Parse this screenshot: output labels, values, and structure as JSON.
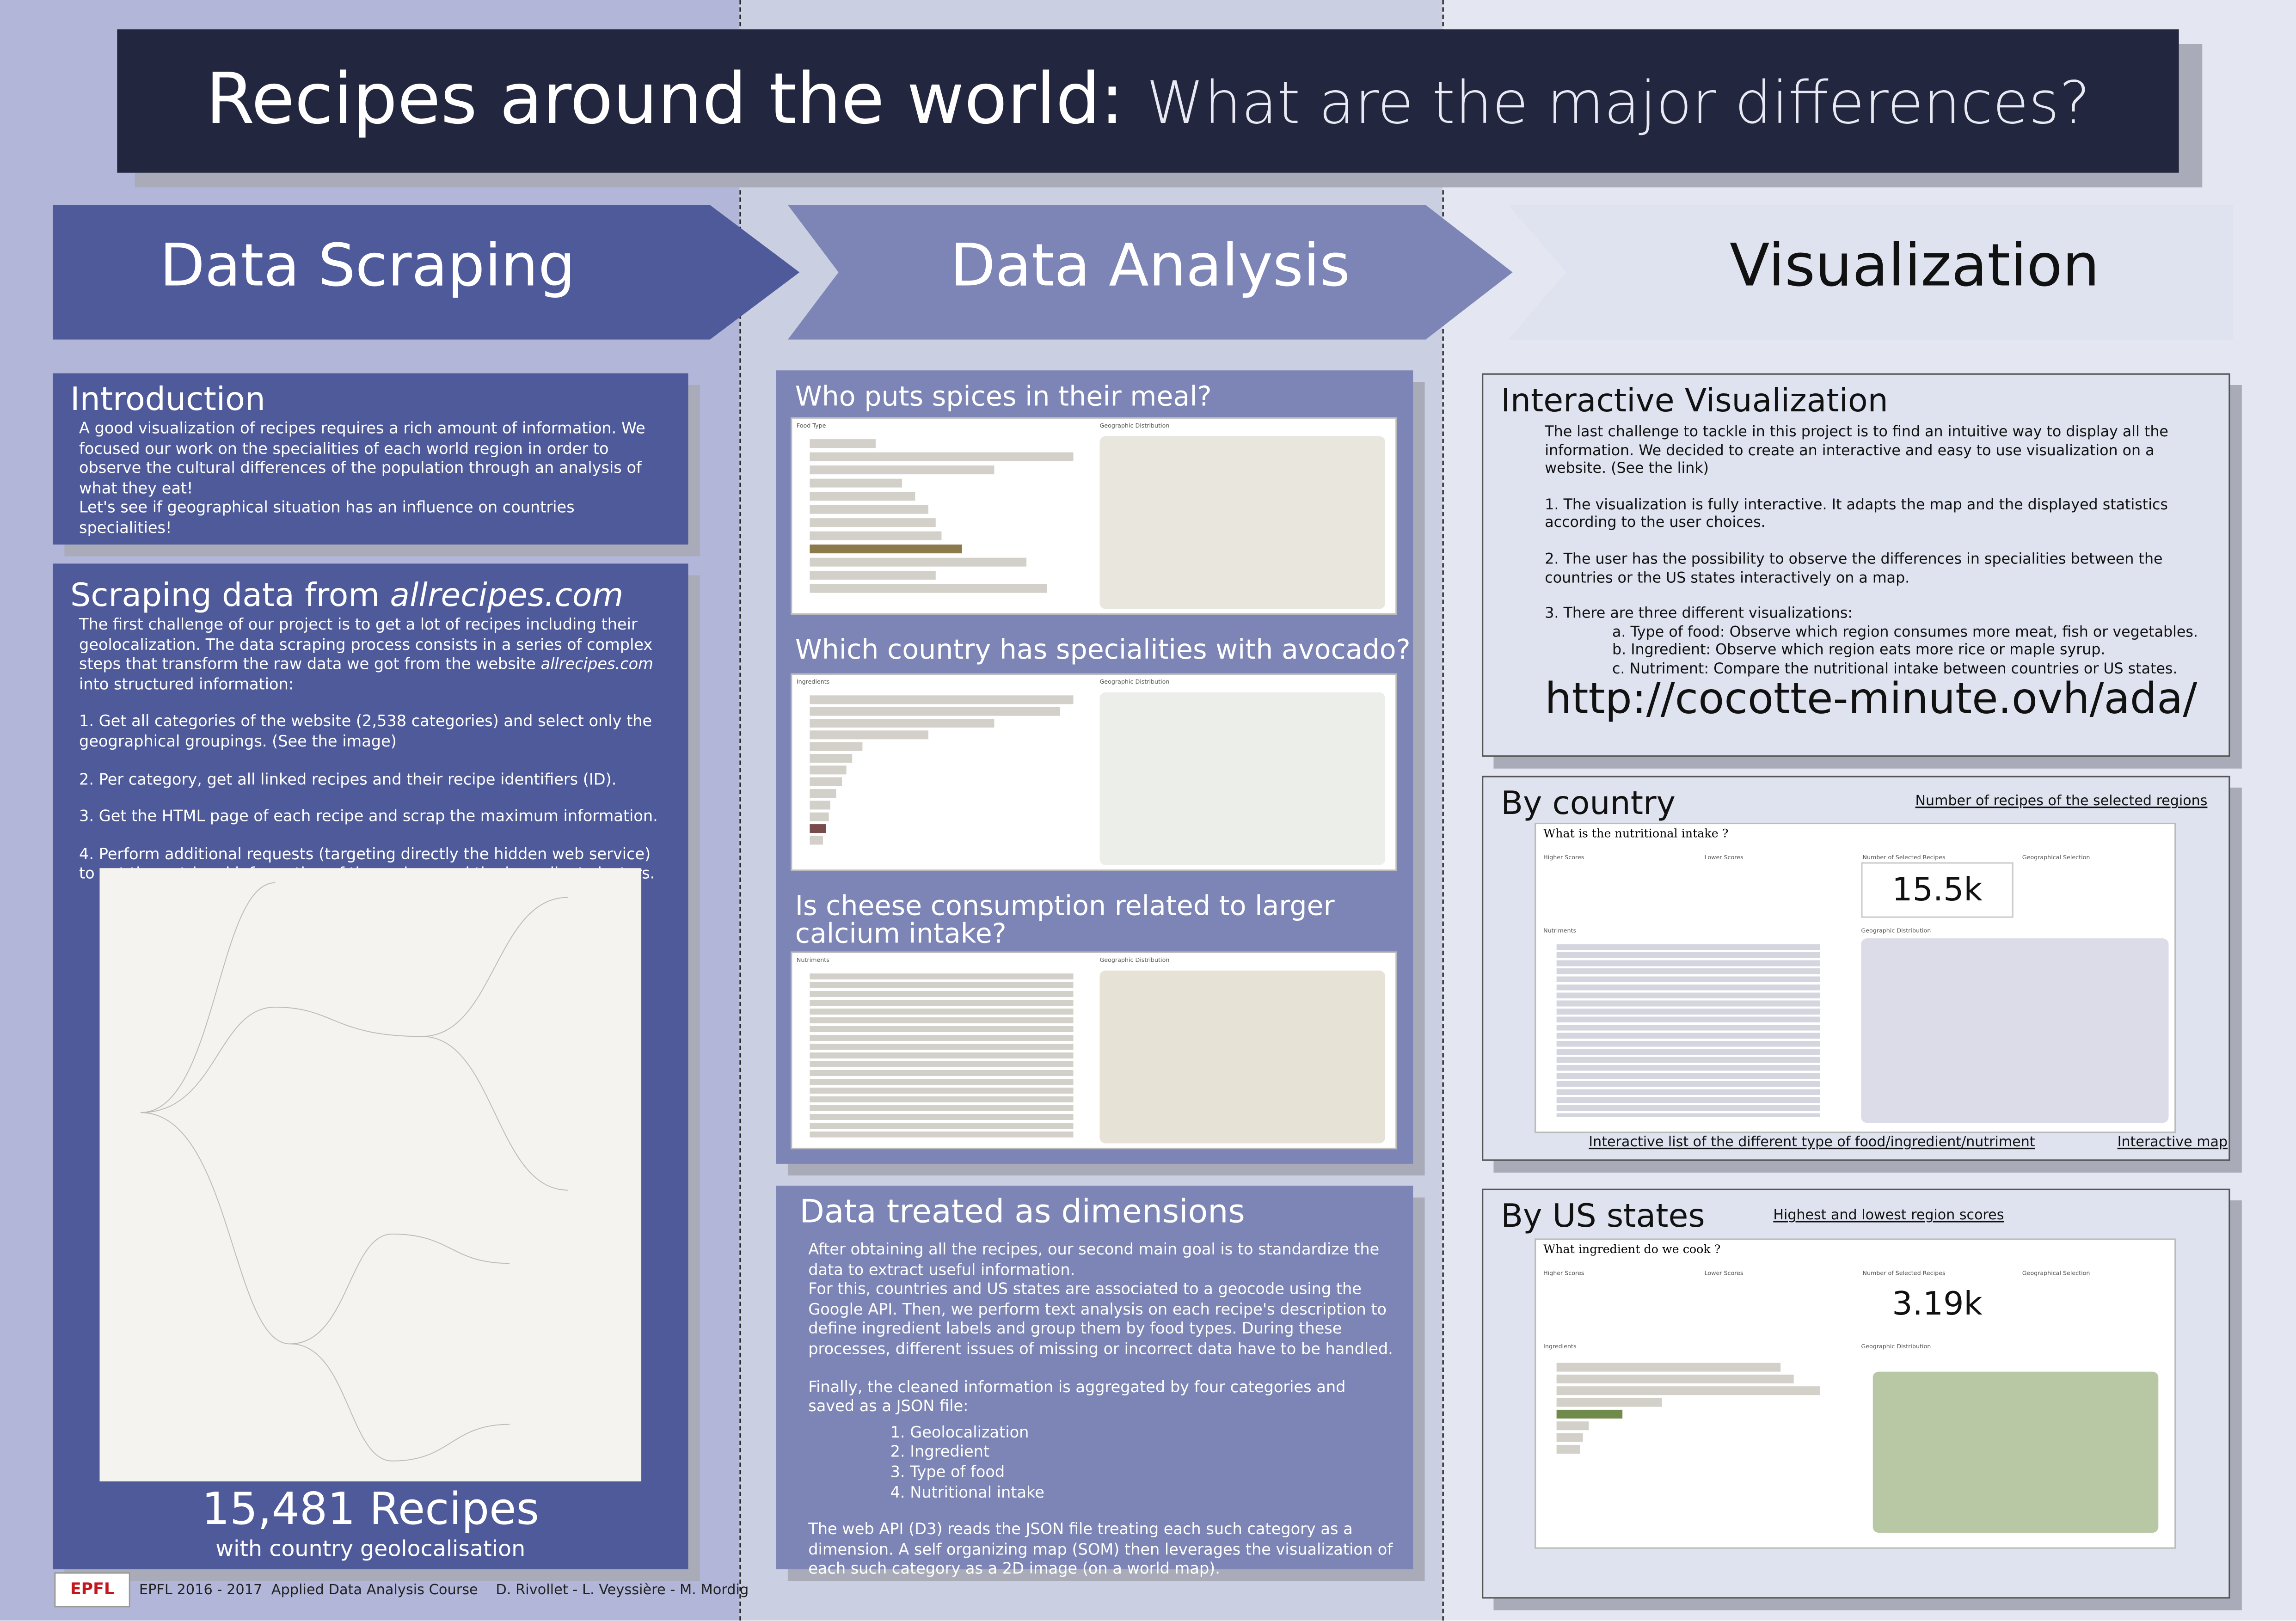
{
  "header": {
    "title_bold": "Recipes around the world:",
    "title_rest": "What are the major differences?"
  },
  "steps": [
    "Data Scraping",
    "Data Analysis",
    "Visualization"
  ],
  "introduction": {
    "heading": "Introduction",
    "paragraphs": [
      "A good visualization of recipes requires a rich amount of information. We focused our work on the specialities of each world region in order to observe the cultural differences of the population through an analysis of what they eat!",
      "Let's see if geographical situation has an influence on countries specialities!"
    ]
  },
  "scraping": {
    "heading_prefix": "Scraping data from ",
    "heading_site": "allrecipes.com",
    "intro": [
      "The first challenge of our project is to get a lot of recipes including their geolocalization. The data scraping process consists in a series of complex steps that transform the raw data we got from the website ",
      "allrecipes.com",
      " into structured information:"
    ],
    "steps": [
      "1. Get all categories of the website (2,538 categories) and select only the geographical groupings. (See the image)",
      "2. Per category, get all linked recipes and their recipe identifiers (ID).",
      "3. Get the HTML page of each recipe and scrap the maximum information.",
      "4. Perform additional requests (targeting directly the hidden web service) to get the nutrional information of the recipes and the ingredient clusters."
    ],
    "total": "15,481 Recipes",
    "total_caption": "with country geolocalisation"
  },
  "analysis": {
    "questions": [
      {
        "title": "Who puts spices in their meal?",
        "left_label": "Food Type",
        "right_label": "Geographic Distribution"
      },
      {
        "title": "Which country has specialities with avocado?",
        "left_label": "Ingredients",
        "right_label": "Geographic Distribution"
      },
      {
        "title": "Is cheese consumption related to larger calcium intake?",
        "left_label": "Nutriments",
        "right_label": "Geographic Distribution"
      }
    ]
  },
  "dimensions": {
    "heading": "Data treated as dimensions",
    "paragraphs": [
      "After obtaining all the recipes, our second main goal is to standardize the data to extract useful information.",
      "For this, countries and US states are associated to a geocode using the Google API. Then, we perform text analysis on each recipe's description to define ingredient labels and group them by food types. During these processes, different issues of missing or incorrect data have to be handled.",
      "Finally, the cleaned information is aggregated by four categories and saved as a JSON file:"
    ],
    "list": [
      "1. Geolocalization",
      "2. Ingredient",
      "3. Type of food",
      "4. Nutritional intake"
    ],
    "closing": "The web API (D3) reads the JSON file treating each such category as a dimension. A self organizing map (SOM) then leverages the visualization of each such category as a 2D image (on a world map)."
  },
  "visualization": {
    "heading": "Interactive Visualization",
    "paragraphs": [
      "The last challenge to tackle in this project is to find an intuitive way to display all the information. We decided to create an interactive and easy to use visualization on a website. (See the link)",
      "1. The visualization is fully interactive. It adapts the map and the displayed statistics according to the user choices.",
      "2. The user has the possibility to observe the differences in specialities between the countries or the US states interactively on a map."
    ],
    "list_intro": "3. There are three different visualizations:",
    "sub_items": [
      "a. Type of food: Observe which region consumes more meat, fish or vegetables.",
      "b. Ingredient: Observe which region eats more rice or maple syrup.",
      "c. Nutriment: Compare the nutritional intake between countries or US states."
    ],
    "url": "http://cocotte-minute.ovh/ada/"
  },
  "dashboard": {
    "higher": "Higher Scores",
    "lower": "Lower Scores",
    "selected": "Number of Selected Recipes",
    "geo": "Geographical Selection",
    "nutriments": "Nutriments",
    "ingredients": "Ingredients",
    "geo_dist": "Geographic Distribution"
  },
  "by_country": {
    "heading": "By country",
    "question": "What is the nutritional intake ?",
    "big_number": "15.5k",
    "annotations": [
      "Number of recipes of the selected regions",
      "Interactive list of the different type of food/ingredient/nutriment",
      "Interactive map"
    ]
  },
  "by_states": {
    "heading": "By US states",
    "question": "What ingredient do we cook ?",
    "big_number": "3.19k",
    "annotations": [
      "Highest and lowest region scores"
    ]
  },
  "footer": {
    "logo": "EPFL",
    "course": "EPFL 2016 - 2017  Applied Data Analysis Course",
    "authors": "D. Rivollet - L. Veyssière - M. Mordig"
  }
}
